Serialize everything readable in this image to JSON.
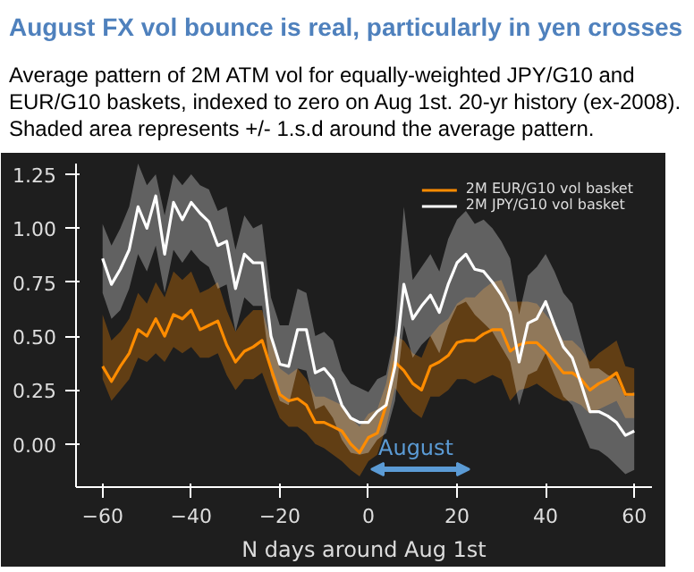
{
  "chart_data": {
    "type": "line",
    "title": "August FX vol bounce is real, particularly in yen crosses",
    "subtitle": "Average pattern of 2M ATM vol for equally-weighted JPY/G10 and EUR/G10 baskets, indexed to zero on Aug 1st. 20-yr history (ex-2008). Shaded area represents +/- 1.s.d around the average pattern.",
    "xlabel": "N days around Aug 1st",
    "x": [
      -60,
      -58,
      -56,
      -54,
      -52,
      -50,
      -48,
      -46,
      -44,
      -42,
      -40,
      -38,
      -36,
      -34,
      -32,
      -30,
      -28,
      -26,
      -24,
      -22,
      -20,
      -18,
      -16,
      -14,
      -12,
      -10,
      -8,
      -6,
      -4,
      -2,
      0,
      2,
      4,
      6,
      8,
      10,
      12,
      14,
      16,
      18,
      20,
      22,
      24,
      26,
      28,
      30,
      32,
      34,
      36,
      38,
      40,
      42,
      44,
      46,
      48,
      50,
      52,
      54,
      56,
      58,
      60
    ],
    "series": [
      {
        "name": "2M EUR/G10 vol basket",
        "color": "#ff8c00",
        "values": [
          0.36,
          0.29,
          0.36,
          0.42,
          0.53,
          0.5,
          0.58,
          0.5,
          0.6,
          0.58,
          0.62,
          0.53,
          0.55,
          0.57,
          0.46,
          0.38,
          0.43,
          0.45,
          0.48,
          0.35,
          0.23,
          0.2,
          0.21,
          0.18,
          0.1,
          0.1,
          0.08,
          0.06,
          0.0,
          -0.04,
          0.03,
          0.05,
          0.18,
          0.38,
          0.34,
          0.28,
          0.25,
          0.36,
          0.38,
          0.41,
          0.47,
          0.48,
          0.48,
          0.51,
          0.53,
          0.53,
          0.43,
          0.46,
          0.47,
          0.47,
          0.43,
          0.38,
          0.33,
          0.33,
          0.3,
          0.25,
          0.28,
          0.3,
          0.33,
          0.23,
          0.23
        ],
        "lower": [
          0.3,
          0.2,
          0.25,
          0.3,
          0.4,
          0.38,
          0.42,
          0.38,
          0.45,
          0.42,
          0.45,
          0.4,
          0.4,
          0.42,
          0.32,
          0.25,
          0.3,
          0.3,
          0.33,
          0.22,
          0.12,
          0.08,
          0.08,
          0.05,
          0.0,
          -0.02,
          -0.05,
          -0.08,
          -0.12,
          -0.15,
          -0.08,
          -0.05,
          0.08,
          0.26,
          0.2,
          0.15,
          0.12,
          0.22,
          0.22,
          0.25,
          0.3,
          0.3,
          0.28,
          0.3,
          0.32,
          0.3,
          0.2,
          0.25,
          0.26,
          0.28,
          0.25,
          0.22,
          0.2,
          0.2,
          0.18,
          0.14,
          0.16,
          0.18,
          0.2,
          0.12,
          0.12
        ],
        "upper": [
          0.6,
          0.48,
          0.52,
          0.58,
          0.7,
          0.65,
          0.75,
          0.68,
          0.8,
          0.76,
          0.8,
          0.7,
          0.72,
          0.75,
          0.62,
          0.52,
          0.58,
          0.62,
          0.62,
          0.48,
          0.35,
          0.32,
          0.35,
          0.3,
          0.22,
          0.22,
          0.2,
          0.18,
          0.12,
          0.08,
          0.14,
          0.16,
          0.28,
          0.5,
          0.48,
          0.42,
          0.4,
          0.5,
          0.55,
          0.58,
          0.65,
          0.68,
          0.68,
          0.72,
          0.75,
          0.76,
          0.66,
          0.66,
          0.66,
          0.65,
          0.6,
          0.55,
          0.48,
          0.48,
          0.44,
          0.38,
          0.42,
          0.45,
          0.48,
          0.36,
          0.35
        ]
      },
      {
        "name": "2M JPY/G10 vol basket",
        "color": "#ffffff",
        "values": [
          0.86,
          0.74,
          0.81,
          0.9,
          1.1,
          1.0,
          1.15,
          0.88,
          1.12,
          1.04,
          1.12,
          1.07,
          1.03,
          0.92,
          0.94,
          0.72,
          0.88,
          0.84,
          0.84,
          0.5,
          0.37,
          0.36,
          0.53,
          0.53,
          0.33,
          0.35,
          0.3,
          0.18,
          0.12,
          0.1,
          0.1,
          0.15,
          0.18,
          0.36,
          0.74,
          0.58,
          0.64,
          0.69,
          0.61,
          0.74,
          0.84,
          0.88,
          0.81,
          0.8,
          0.75,
          0.69,
          0.61,
          0.38,
          0.56,
          0.58,
          0.66,
          0.55,
          0.45,
          0.4,
          0.28,
          0.15,
          0.15,
          0.13,
          0.1,
          0.04,
          0.06
        ],
        "lower": [
          0.7,
          0.58,
          0.62,
          0.72,
          0.88,
          0.8,
          0.92,
          0.7,
          0.9,
          0.84,
          0.9,
          0.85,
          0.82,
          0.72,
          0.74,
          0.52,
          0.68,
          0.64,
          0.64,
          0.32,
          0.2,
          0.18,
          0.35,
          0.34,
          0.16,
          0.18,
          0.12,
          0.02,
          -0.04,
          -0.05,
          -0.04,
          0.02,
          0.05,
          0.2,
          0.55,
          0.4,
          0.46,
          0.5,
          0.42,
          0.55,
          0.64,
          0.66,
          0.6,
          0.56,
          0.52,
          0.45,
          0.38,
          0.18,
          0.32,
          0.34,
          0.42,
          0.32,
          0.22,
          0.18,
          0.08,
          -0.02,
          -0.03,
          -0.06,
          -0.1,
          -0.14,
          -0.12
        ],
        "upper": [
          1.02,
          0.92,
          1.0,
          1.1,
          1.3,
          1.2,
          1.25,
          1.06,
          1.25,
          1.2,
          1.25,
          1.2,
          1.18,
          1.08,
          1.1,
          0.9,
          1.06,
          1.0,
          1.02,
          0.68,
          0.55,
          0.55,
          0.72,
          0.7,
          0.5,
          0.52,
          0.48,
          0.34,
          0.28,
          0.26,
          0.24,
          0.3,
          0.32,
          0.52,
          1.1,
          0.76,
          0.82,
          0.88,
          0.8,
          0.95,
          1.04,
          1.08,
          1.02,
          1.04,
          1.0,
          0.94,
          0.86,
          0.6,
          0.78,
          0.82,
          0.88,
          0.8,
          0.7,
          0.65,
          0.5,
          0.35,
          0.35,
          0.32,
          0.3,
          0.22,
          0.24
        ]
      }
    ],
    "xlim": [
      -66,
      64
    ],
    "ylim": [
      -0.2,
      1.3
    ],
    "xticks": [
      {
        "value": -60,
        "label": "−60"
      },
      {
        "value": -40,
        "label": "−40"
      },
      {
        "value": -20,
        "label": "−20"
      },
      0,
      20,
      40,
      60
    ],
    "yticks": [
      {
        "value": 0,
        "label": "0.00"
      },
      {
        "value": 0.25,
        "label": "0.25"
      },
      {
        "value": 0.5,
        "label": "0.50"
      },
      {
        "value": 0.75,
        "label": "0.75"
      },
      {
        "value": 1,
        "label": "1.00"
      },
      {
        "value": 1.25,
        "label": "1.25"
      }
    ],
    "annotations": [
      "August"
    ],
    "grid": false,
    "legend": "top right",
    "line_style": "solid",
    "marker": "none"
  }
}
